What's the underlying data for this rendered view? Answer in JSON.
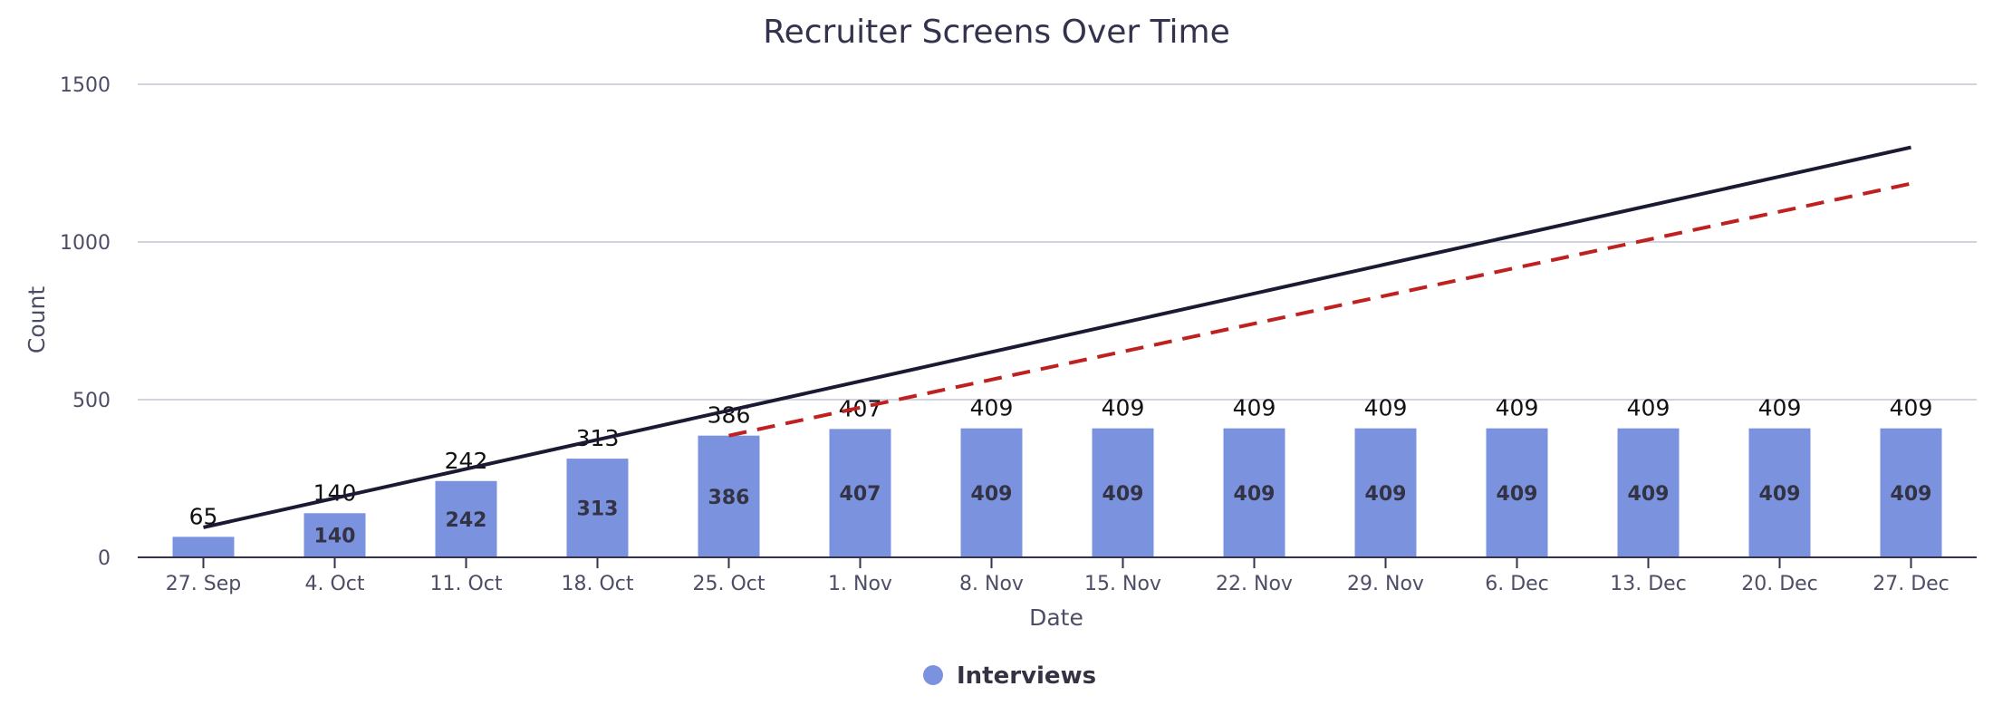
{
  "chart_data": {
    "type": "bar",
    "title": "Recruiter Screens Over Time",
    "xlabel": "Date",
    "ylabel": "Count",
    "ylim": [
      0,
      1500
    ],
    "yticks": [
      0,
      500,
      1000,
      1500
    ],
    "grid": true,
    "legend_position": "bottom-center",
    "categories": [
      "27. Sep",
      "4. Oct",
      "11. Oct",
      "18. Oct",
      "25. Oct",
      "1. Nov",
      "8. Nov",
      "15. Nov",
      "22. Nov",
      "29. Nov",
      "6. Dec",
      "13. Dec",
      "20. Dec",
      "27. Dec"
    ],
    "series": [
      {
        "name": "Interviews",
        "type": "bar",
        "color": "#7b93df",
        "values": [
          65,
          140,
          242,
          313,
          386,
          407,
          409,
          409,
          409,
          409,
          409,
          409,
          409,
          409
        ]
      },
      {
        "type": "line",
        "color": "#1a1a33",
        "style": "solid",
        "points": [
          {
            "x": "27. Sep",
            "y": 95
          },
          {
            "x": "27. Dec",
            "y": 1300
          }
        ]
      },
      {
        "type": "line",
        "color": "#bf2020",
        "style": "dashed",
        "points": [
          {
            "x": "25. Oct",
            "y": 386
          },
          {
            "x": "27. Dec",
            "y": 1185
          }
        ]
      }
    ]
  }
}
